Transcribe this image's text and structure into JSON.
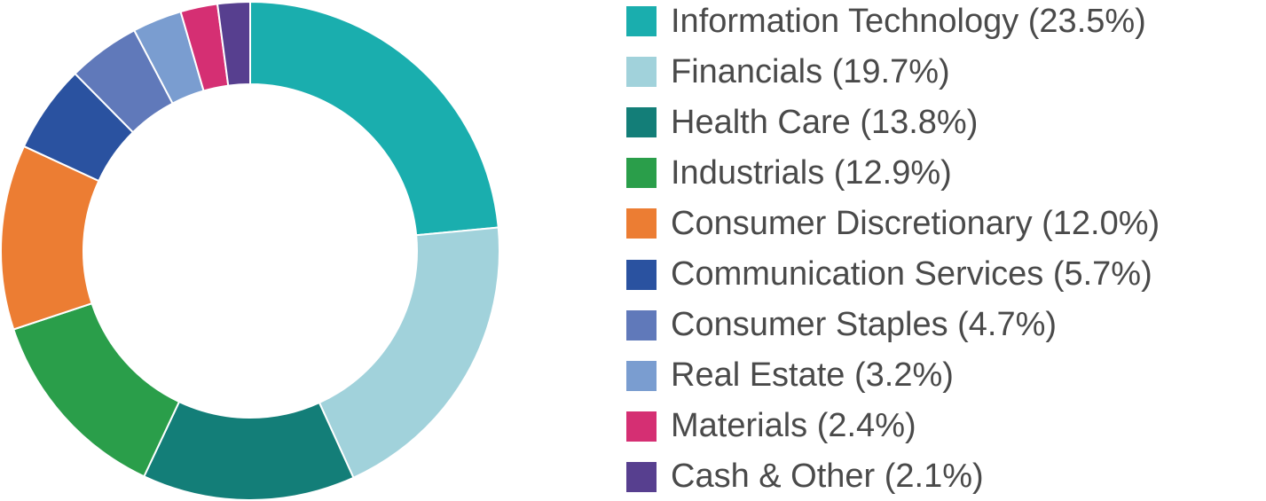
{
  "chart_data": {
    "type": "pie",
    "variant": "donut",
    "title": "",
    "legend_position": "right",
    "categories": [
      "Information Technology",
      "Financials",
      "Health Care",
      "Industrials",
      "Consumer Discretionary",
      "Communication Services",
      "Consumer Staples",
      "Real Estate",
      "Materials",
      "Cash & Other"
    ],
    "values": [
      23.5,
      19.7,
      13.8,
      12.9,
      12.0,
      5.7,
      4.7,
      3.2,
      2.4,
      2.1
    ],
    "unit": "%",
    "colors": [
      "#1aaeae",
      "#a1d2db",
      "#137e78",
      "#2a9e4a",
      "#ec7d33",
      "#2a52a0",
      "#6079ba",
      "#7a9dd0",
      "#d52f73",
      "#573f8f"
    ],
    "legend_labels": [
      "Information Technology (23.5%)",
      "Financials (19.7%)",
      "Health Care (13.8%)",
      "Industrials (12.9%)",
      "Consumer Discretionary (12.0%)",
      "Communication Services (5.7%)",
      "Consumer Staples (4.7%)",
      "Real Estate (3.2%)",
      "Materials (2.4%)",
      "Cash & Other (2.1%)"
    ]
  }
}
